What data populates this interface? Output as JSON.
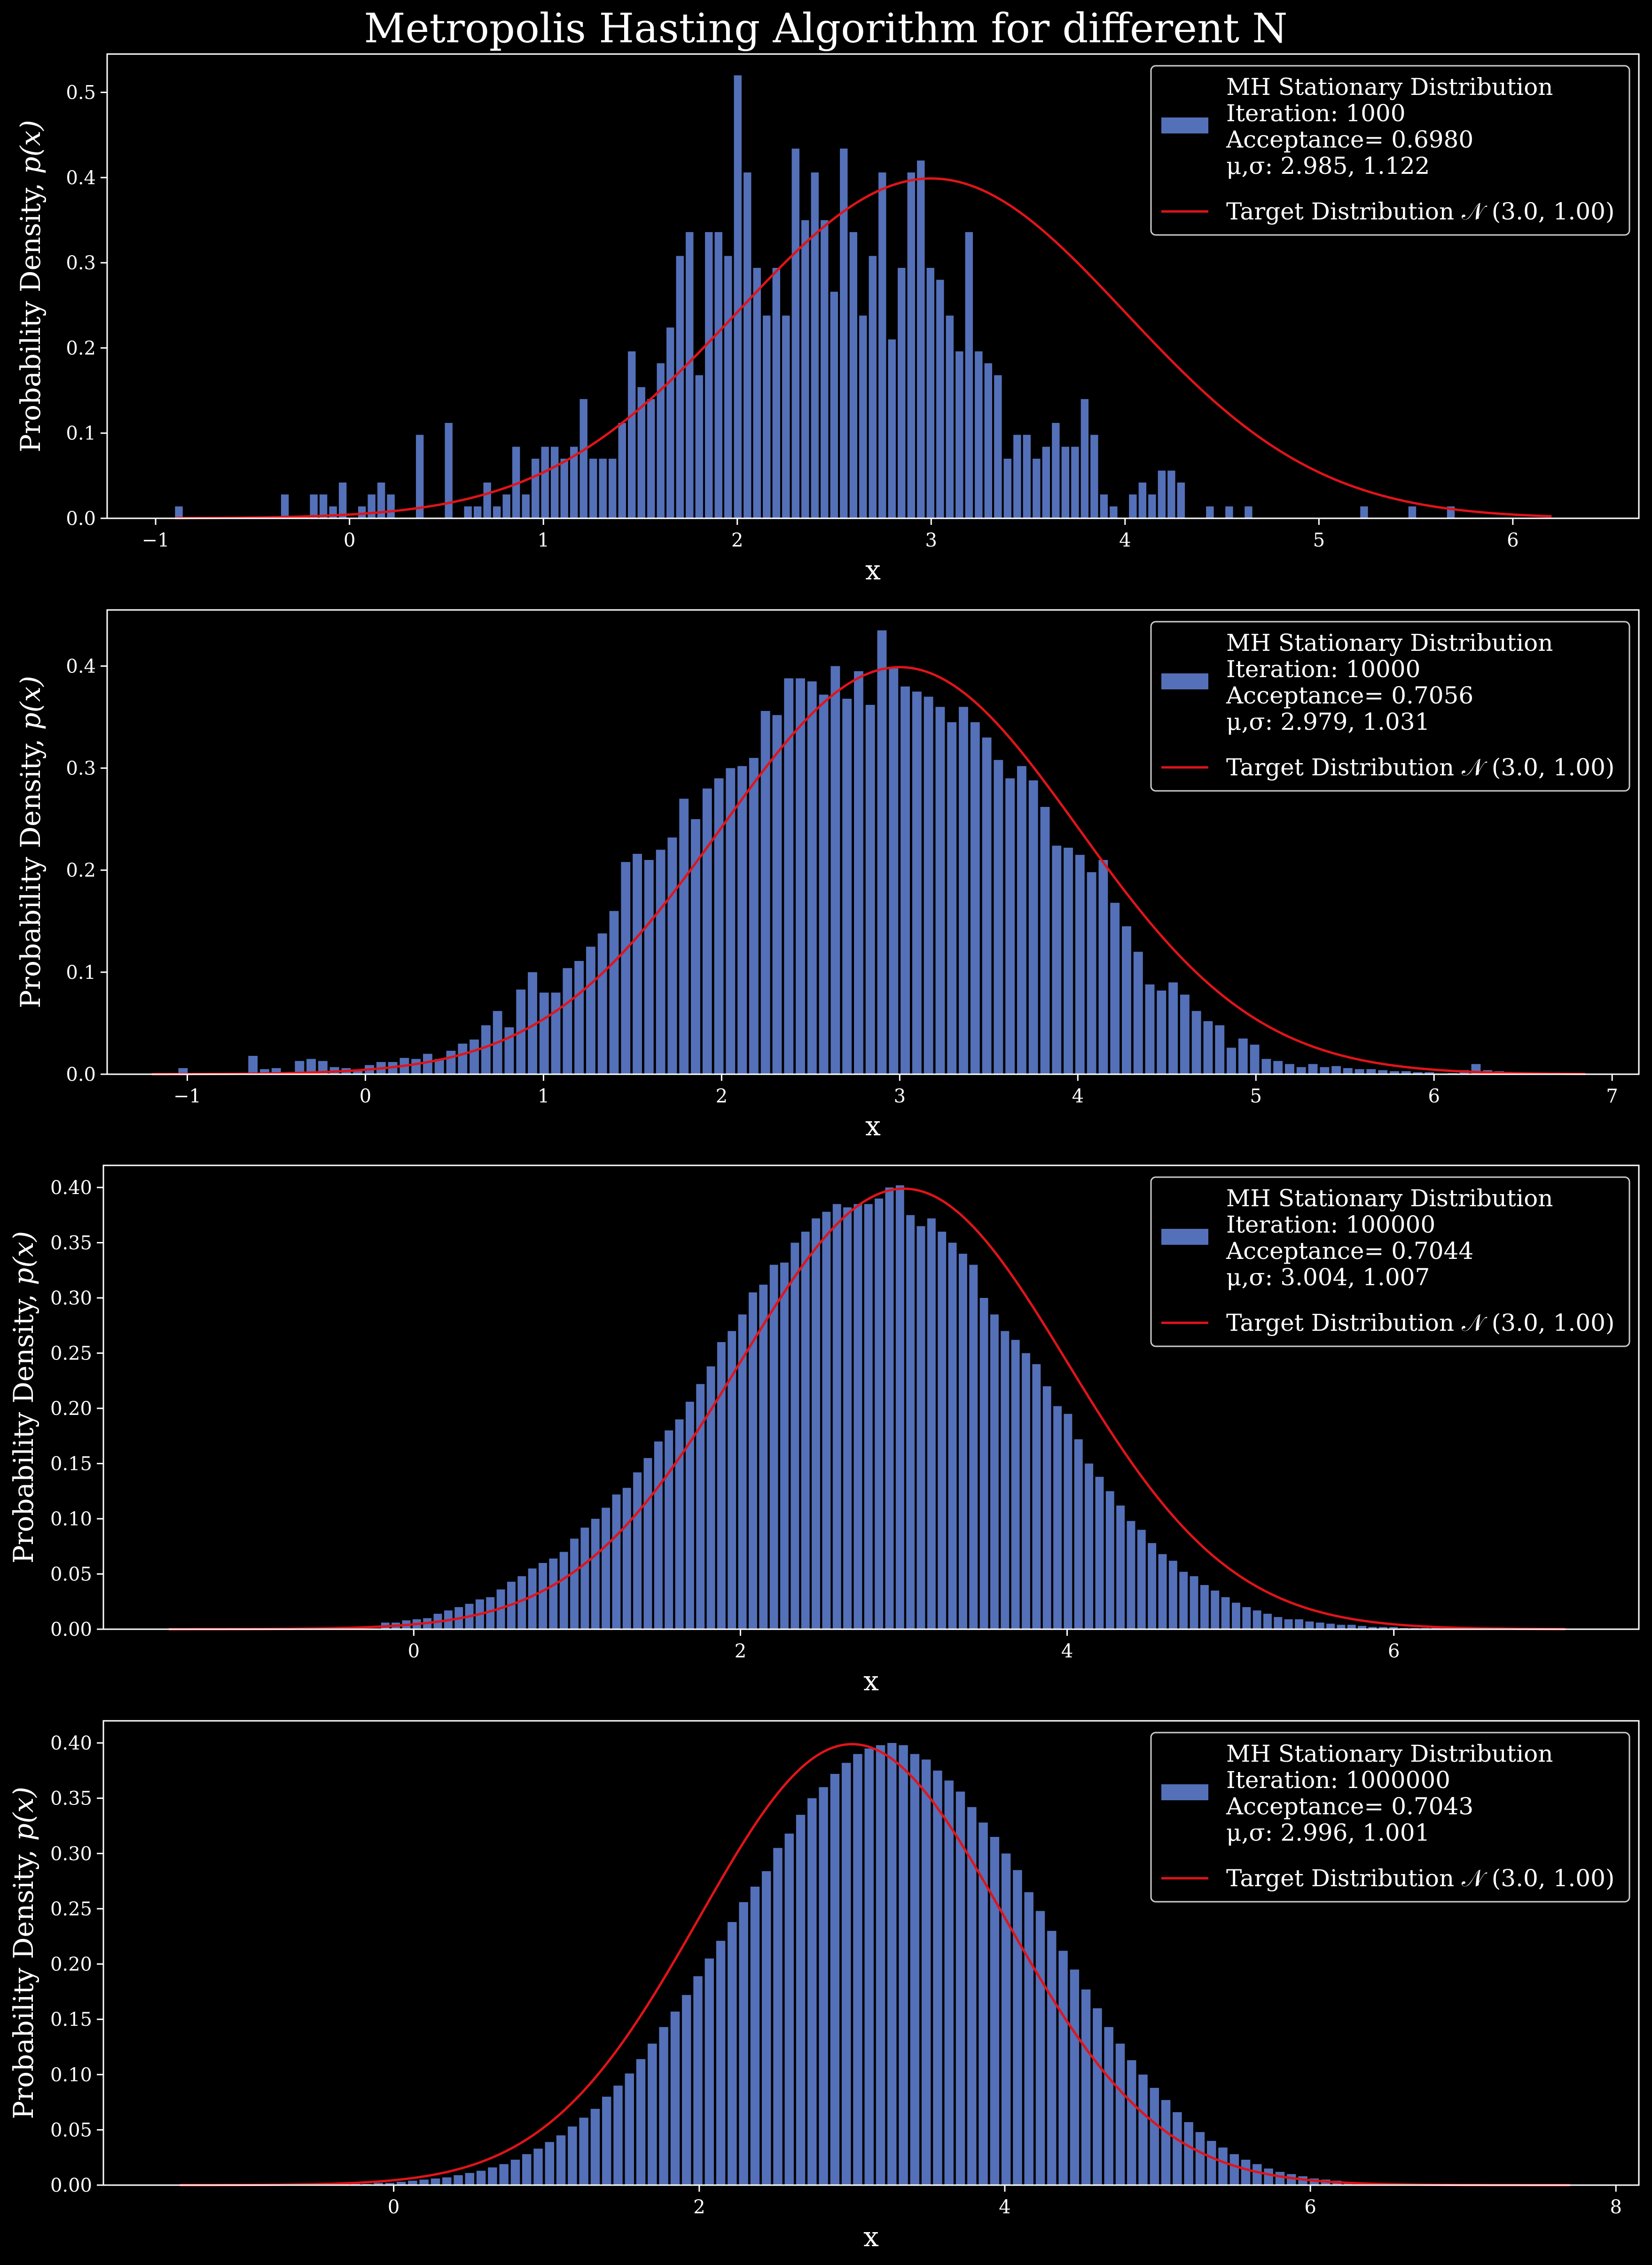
{
  "figure": {
    "title": "Metropolis Hasting Algorithm for different N"
  },
  "colors": {
    "background": "#000000",
    "bars": "#5470b8",
    "target_line": "#e0141a",
    "text": "#ffffff"
  },
  "chart_data": [
    {
      "type": "bar",
      "ylabel": "Probability Density, p(x)",
      "xlabel": "x",
      "xlim": [
        -1.25,
        6.65
      ],
      "ylim": [
        0,
        0.545
      ],
      "xticks": [
        -1,
        0,
        1,
        2,
        3,
        4,
        5,
        6
      ],
      "yticks": [
        0.0,
        0.1,
        0.2,
        0.3,
        0.4,
        0.5
      ],
      "ytick_decimals": 1,
      "legend_position": "top-right",
      "legend": {
        "hist_lines": [
          "MH Stationary Distribution",
          "Iteration: 1000",
          "Acceptance= 0.6980",
          "μ,σ: 2.985, 1.122"
        ],
        "line_label": "Target Distribution 𝒩 (3.0, 1.00)"
      },
      "target": {
        "mu": 3.0,
        "sigma": 1.0,
        "x_range": [
          -0.9,
          6.2
        ]
      },
      "bin_start": -0.9,
      "bin_width": 0.0497,
      "values": [
        0.014,
        0,
        0,
        0,
        0,
        0,
        0,
        0,
        0,
        0,
        0,
        0.028,
        0,
        0,
        0.028,
        0.028,
        0.014,
        0.042,
        0,
        0.014,
        0.028,
        0.042,
        0.028,
        0,
        0,
        0.098,
        0,
        0,
        0.112,
        0,
        0.014,
        0.014,
        0.042,
        0.014,
        0.028,
        0.084,
        0.028,
        0.07,
        0.084,
        0.084,
        0.07,
        0.084,
        0.14,
        0.07,
        0.07,
        0.07,
        0.112,
        0.196,
        0.154,
        0.14,
        0.182,
        0.224,
        0.308,
        0.336,
        0.168,
        0.336,
        0.336,
        0.308,
        0.52,
        0.406,
        0.294,
        0.238,
        0.294,
        0.238,
        0.434,
        0.35,
        0.406,
        0.35,
        0.266,
        0.434,
        0.336,
        0.238,
        0.308,
        0.406,
        0.21,
        0.294,
        0.406,
        0.42,
        0.294,
        0.28,
        0.238,
        0.196,
        0.336,
        0.196,
        0.182,
        0.168,
        0.07,
        0.098,
        0.098,
        0.07,
        0.084,
        0.112,
        0.084,
        0.084,
        0.14,
        0.098,
        0.028,
        0.014,
        0,
        0.028,
        0.042,
        0.028,
        0.056,
        0.056,
        0.042,
        0,
        0,
        0.014,
        0,
        0.014,
        0,
        0.014,
        0,
        0,
        0,
        0,
        0,
        0,
        0,
        0,
        0,
        0,
        0,
        0.014,
        0,
        0,
        0,
        0,
        0.014,
        0,
        0,
        0,
        0.014
      ]
    },
    {
      "type": "bar",
      "ylabel": "Probability Density, p(x)",
      "xlabel": "x",
      "xlim": [
        -1.45,
        7.15
      ],
      "ylim": [
        0,
        0.455
      ],
      "xticks": [
        -1,
        0,
        1,
        2,
        3,
        4,
        5,
        6,
        7
      ],
      "yticks": [
        0.0,
        0.1,
        0.2,
        0.3,
        0.4
      ],
      "ytick_decimals": 1,
      "legend_position": "top-right",
      "legend": {
        "hist_lines": [
          "MH Stationary Distribution",
          "Iteration: 10000",
          "Acceptance= 0.7056",
          "μ,σ: 2.979, 1.031"
        ],
        "line_label": "Target Distribution 𝒩 (3.0, 1.00)"
      },
      "target": {
        "mu": 3.0,
        "sigma": 1.0,
        "x_range": [
          -1.2,
          6.85
        ]
      },
      "bin_start": -1.05,
      "bin_width": 0.0654,
      "values": [
        0.006,
        0,
        0,
        0,
        0,
        0,
        0.018,
        0.005,
        0.006,
        0,
        0.013,
        0.015,
        0.013,
        0.007,
        0.006,
        0.004,
        0.009,
        0.012,
        0.012,
        0.016,
        0.015,
        0.02,
        0.015,
        0.023,
        0.03,
        0.034,
        0.048,
        0.062,
        0.046,
        0.083,
        0.1,
        0.08,
        0.08,
        0.104,
        0.111,
        0.125,
        0.138,
        0.16,
        0.208,
        0.216,
        0.21,
        0.22,
        0.232,
        0.27,
        0.25,
        0.28,
        0.29,
        0.3,
        0.302,
        0.31,
        0.356,
        0.352,
        0.388,
        0.388,
        0.385,
        0.372,
        0.4,
        0.368,
        0.395,
        0.362,
        0.435,
        0.398,
        0.38,
        0.375,
        0.37,
        0.36,
        0.345,
        0.36,
        0.345,
        0.33,
        0.308,
        0.29,
        0.302,
        0.288,
        0.262,
        0.224,
        0.222,
        0.215,
        0.198,
        0.21,
        0.168,
        0.145,
        0.12,
        0.088,
        0.082,
        0.09,
        0.078,
        0.062,
        0.052,
        0.048,
        0.026,
        0.035,
        0.029,
        0.015,
        0.013,
        0.01,
        0.007,
        0.01,
        0.007,
        0.008,
        0.006,
        0.005,
        0.005,
        0.004,
        0.003,
        0.003,
        0.002,
        0.002,
        0,
        0.001,
        0.004,
        0.01,
        0.004,
        0.003
      ]
    },
    {
      "type": "bar",
      "ylabel": "Probability Density, p(x)",
      "xlabel": "x",
      "xlim": [
        -1.9,
        7.5
      ],
      "ylim": [
        0,
        0.42
      ],
      "xticks": [
        0,
        2,
        4,
        6
      ],
      "yticks": [
        0.0,
        0.05,
        0.1,
        0.15,
        0.2,
        0.25,
        0.3,
        0.35,
        0.4
      ],
      "ytick_decimals": 2,
      "legend_position": "top-right",
      "legend": {
        "hist_lines": [
          "MH Stationary Distribution",
          "Iteration: 100000",
          "Acceptance= 0.7044",
          "μ,σ: 3.004, 1.007"
        ],
        "line_label": "Target Distribution 𝒩 (3.0, 1.00)"
      },
      "target": {
        "mu": 3.0,
        "sigma": 1.0,
        "x_range": [
          -1.5,
          7.05
        ]
      },
      "bin_start": -0.2,
      "bin_width": 0.0643,
      "values": [
        0.006,
        0.006,
        0.008,
        0.009,
        0.01,
        0.014,
        0.017,
        0.02,
        0.023,
        0.027,
        0.029,
        0.036,
        0.043,
        0.048,
        0.055,
        0.06,
        0.064,
        0.07,
        0.082,
        0.092,
        0.1,
        0.11,
        0.122,
        0.128,
        0.142,
        0.155,
        0.17,
        0.18,
        0.19,
        0.206,
        0.222,
        0.238,
        0.26,
        0.27,
        0.285,
        0.305,
        0.312,
        0.33,
        0.332,
        0.35,
        0.36,
        0.372,
        0.378,
        0.385,
        0.382,
        0.385,
        0.385,
        0.39,
        0.4,
        0.402,
        0.375,
        0.365,
        0.372,
        0.36,
        0.35,
        0.34,
        0.33,
        0.3,
        0.285,
        0.27,
        0.262,
        0.25,
        0.24,
        0.22,
        0.202,
        0.195,
        0.172,
        0.15,
        0.138,
        0.125,
        0.112,
        0.098,
        0.09,
        0.078,
        0.068,
        0.062,
        0.052,
        0.048,
        0.04,
        0.035,
        0.029,
        0.024,
        0.02,
        0.017,
        0.014,
        0.011,
        0.009,
        0.009,
        0.007,
        0.006,
        0.005,
        0.004,
        0.004,
        0.003,
        0.002,
        0.002,
        0.002,
        0.001,
        0.001,
        0.001,
        0.001
      ]
    },
    {
      "type": "bar",
      "ylabel": "Probability Density, p(x)",
      "xlabel": "x",
      "xlim": [
        -1.9,
        8.15
      ],
      "ylim": [
        0,
        0.42
      ],
      "xticks": [
        0,
        2,
        4,
        6,
        8
      ],
      "yticks": [
        0.0,
        0.05,
        0.1,
        0.15,
        0.2,
        0.25,
        0.3,
        0.35,
        0.4
      ],
      "ytick_decimals": 2,
      "legend_position": "top-right",
      "legend": {
        "hist_lines": [
          "MH Stationary Distribution",
          "Iteration: 1000000",
          "Acceptance= 0.7043",
          "μ,σ: 2.996, 1.001"
        ],
        "line_label": "Target Distribution 𝒩 (3.0, 1.00)"
      },
      "target": {
        "mu": 3.0,
        "sigma": 1.0,
        "x_range": [
          -1.4,
          7.7
        ]
      },
      "bin_start": -1.4,
      "bin_width": 0.0747,
      "values": [
        0.0,
        0.0,
        0.0,
        0.0,
        0.0,
        0.0,
        0.0,
        0.0,
        0.0,
        0.0,
        0.0,
        0.0,
        0.0,
        0.001,
        0.001,
        0.001,
        0.001,
        0.002,
        0.002,
        0.003,
        0.004,
        0.005,
        0.006,
        0.007,
        0.009,
        0.011,
        0.013,
        0.016,
        0.019,
        0.023,
        0.028,
        0.033,
        0.039,
        0.045,
        0.053,
        0.061,
        0.069,
        0.08,
        0.09,
        0.101,
        0.114,
        0.128,
        0.143,
        0.157,
        0.172,
        0.189,
        0.205,
        0.221,
        0.238,
        0.256,
        0.27,
        0.284,
        0.305,
        0.318,
        0.335,
        0.35,
        0.36,
        0.372,
        0.382,
        0.39,
        0.395,
        0.398,
        0.4,
        0.398,
        0.39,
        0.385,
        0.375,
        0.366,
        0.356,
        0.342,
        0.328,
        0.315,
        0.3,
        0.285,
        0.265,
        0.248,
        0.23,
        0.212,
        0.195,
        0.177,
        0.16,
        0.143,
        0.128,
        0.113,
        0.1,
        0.088,
        0.077,
        0.066,
        0.057,
        0.048,
        0.04,
        0.034,
        0.028,
        0.023,
        0.019,
        0.015,
        0.012,
        0.01,
        0.008,
        0.006,
        0.005,
        0.004,
        0.003,
        0.002,
        0.002,
        0.001,
        0.001,
        0.001,
        0.0,
        0.0,
        0.0,
        0.0,
        0.0,
        0.0,
        0.0,
        0.0,
        0.0,
        0.0,
        0.0,
        0.0,
        0.0,
        0.0
      ]
    }
  ]
}
